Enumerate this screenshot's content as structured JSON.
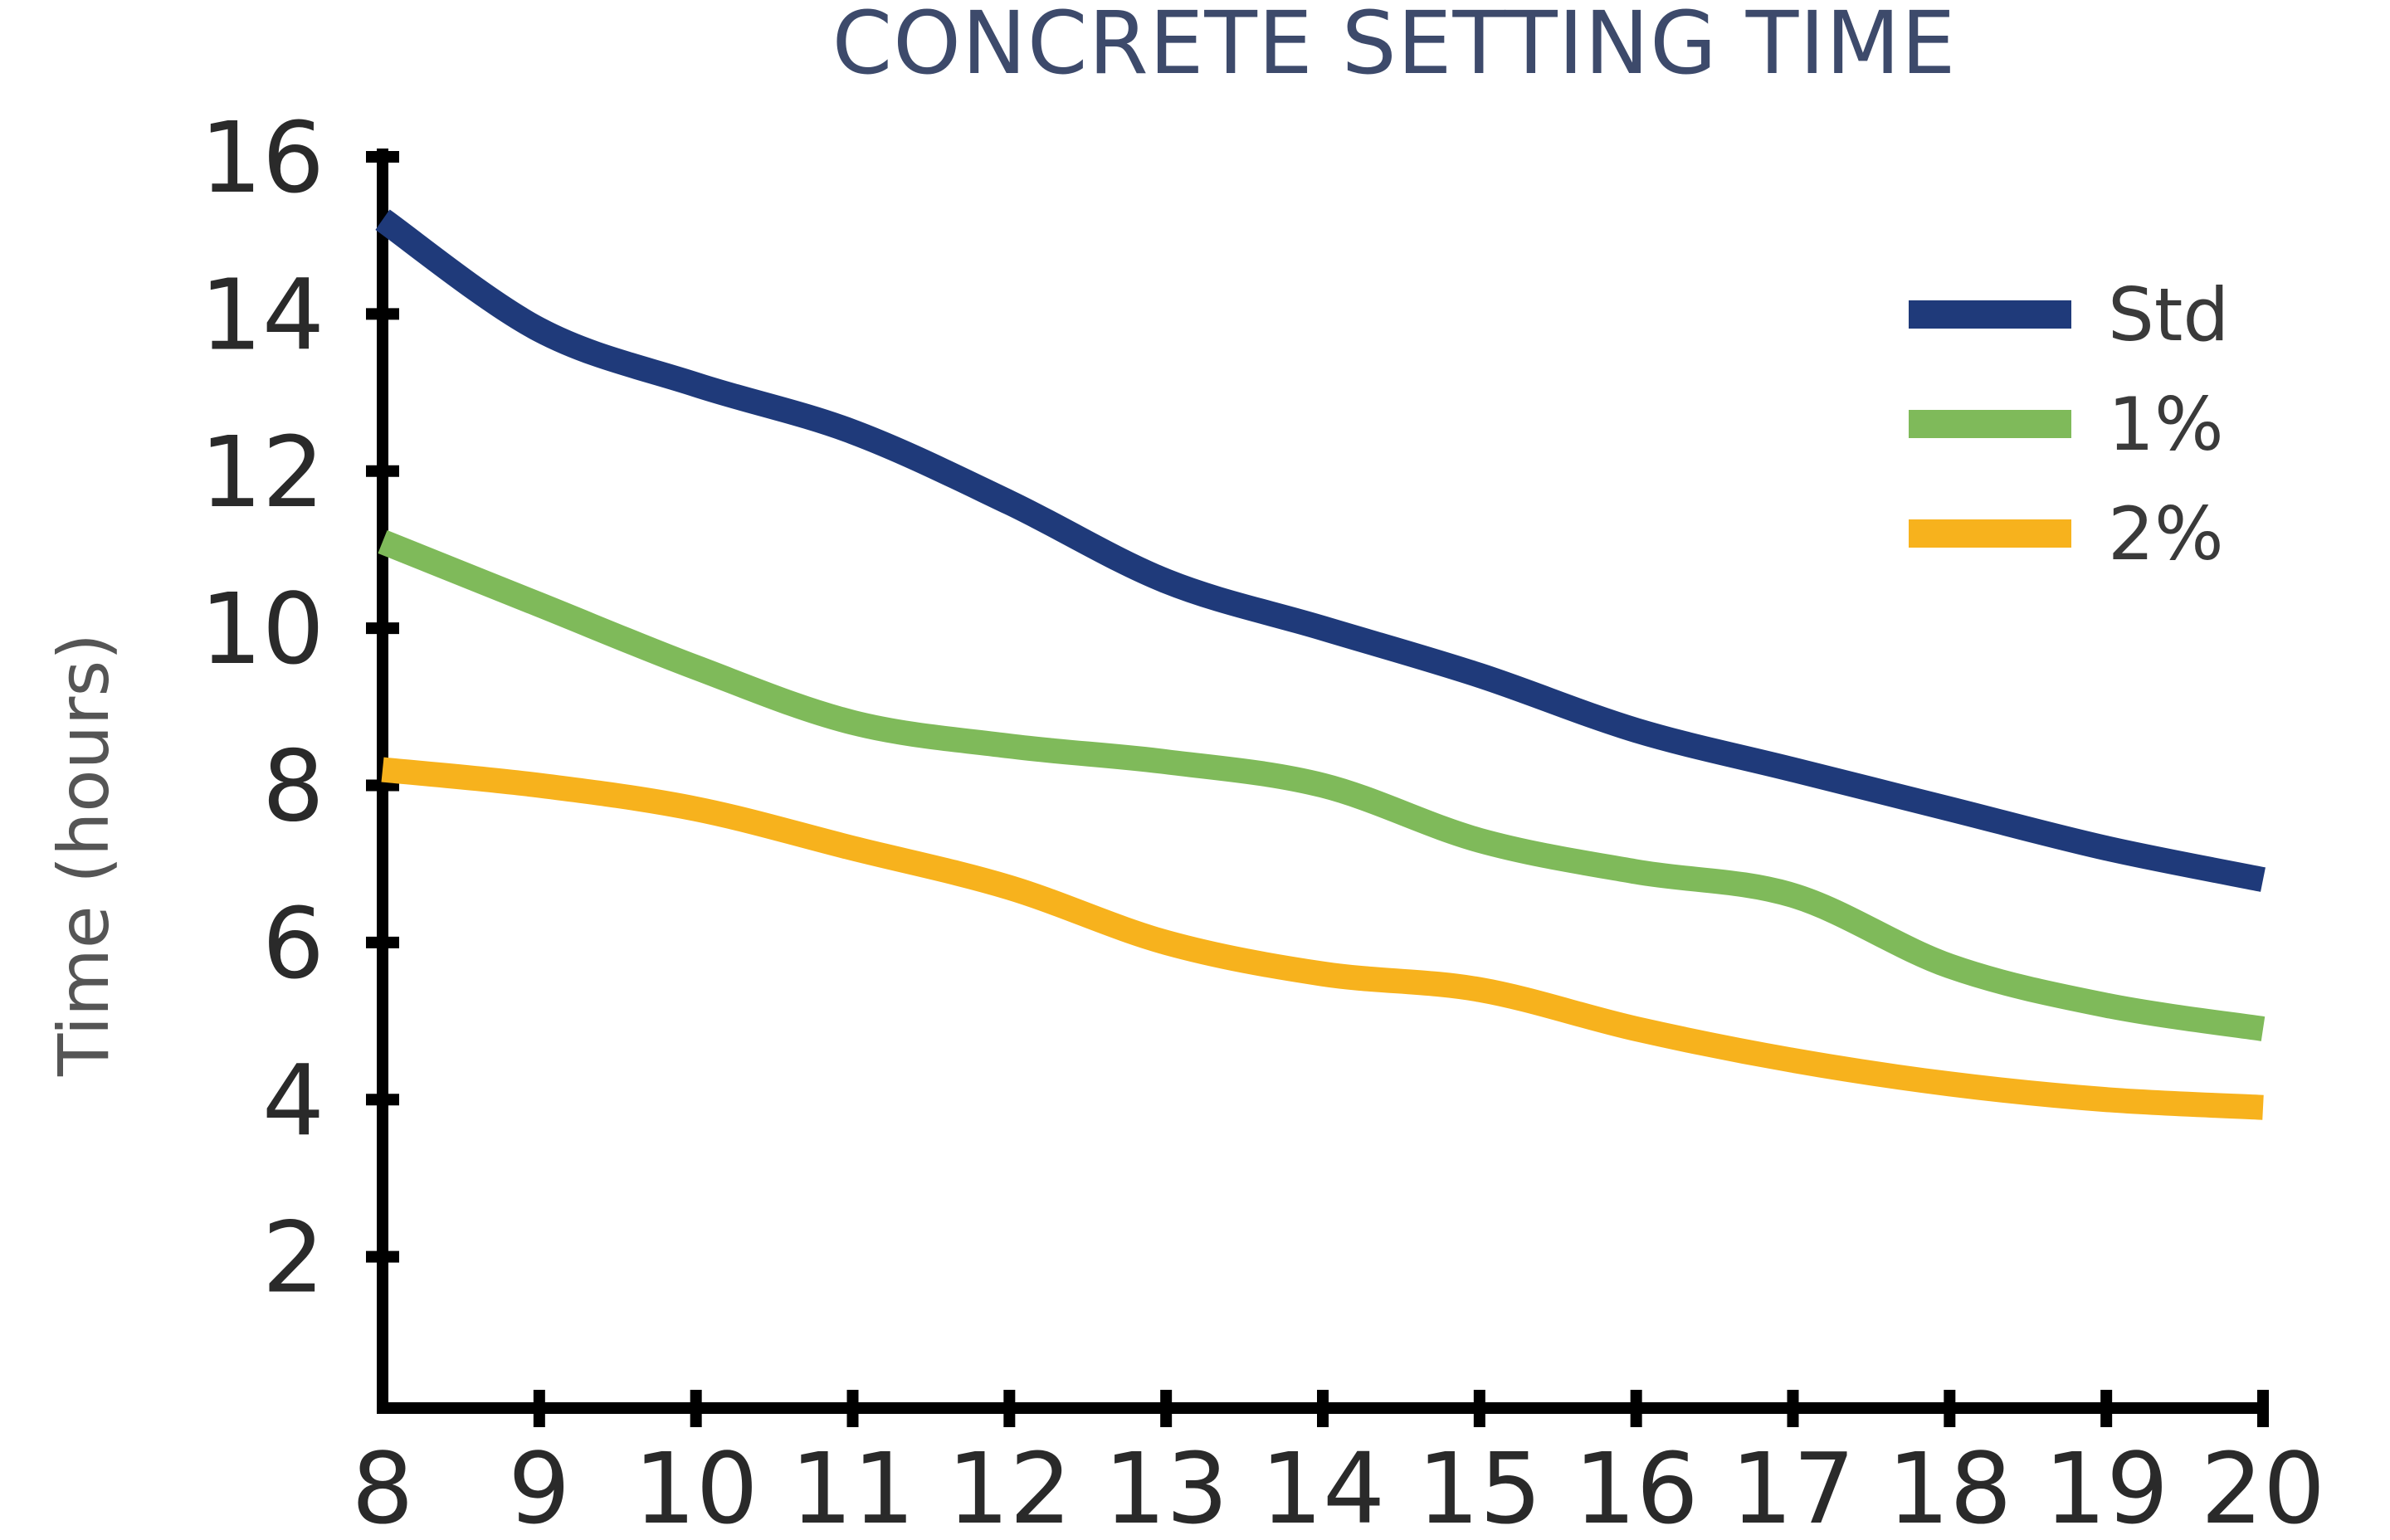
{
  "chart_data": {
    "type": "line",
    "title": "CONCRETE SETTING TIME",
    "xlabel": "",
    "ylabel": "Time (hours)",
    "x": [
      8,
      9,
      10,
      11,
      12,
      13,
      14,
      15,
      16,
      17,
      18,
      19,
      20
    ],
    "xlim": [
      8,
      20
    ],
    "ylim": [
      0,
      16
    ],
    "xticks": [
      8,
      9,
      10,
      11,
      12,
      13,
      14,
      15,
      16,
      17,
      18,
      19,
      20
    ],
    "yticks": [
      2,
      4,
      6,
      8,
      10,
      12,
      14,
      16
    ],
    "grid": false,
    "legend_position": "upper right",
    "series": [
      {
        "name": "Std",
        "color": "#1f3a7a",
        "values": [
          15.2,
          13.8,
          13.1,
          12.5,
          11.6,
          10.6,
          10.0,
          9.4,
          8.7,
          8.2,
          7.7,
          7.2,
          6.8
        ]
      },
      {
        "name": "1%",
        "color": "#7fba5a",
        "values": [
          11.1,
          10.3,
          9.5,
          8.8,
          8.5,
          8.3,
          8.0,
          7.3,
          6.9,
          6.6,
          5.7,
          5.2,
          4.9
        ]
      },
      {
        "name": "2%",
        "color": "#f7b21d",
        "values": [
          8.2,
          8.0,
          7.7,
          7.2,
          6.7,
          6.0,
          5.6,
          5.4,
          4.9,
          4.5,
          4.2,
          4.0,
          3.9
        ]
      }
    ]
  }
}
